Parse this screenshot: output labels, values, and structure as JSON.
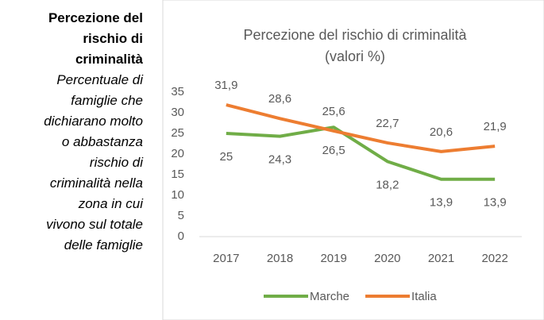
{
  "sidebar": {
    "title_lines": [
      "Percezione del",
      "rischio di",
      "criminalità"
    ],
    "description_lines": [
      "Percentuale di",
      "famiglie che",
      "dichiarano molto",
      "o abbastanza",
      "rischio di",
      "criminalità nella",
      "zona in cui",
      "vivono sul totale",
      "delle famiglie"
    ]
  },
  "chart_data": {
    "type": "line",
    "title": "Percezione del rischio di criminalità",
    "subtitle": "(valori %)",
    "categories": [
      "2017",
      "2018",
      "2019",
      "2020",
      "2021",
      "2022"
    ],
    "series": [
      {
        "name": "Marche",
        "color": "#70ad47",
        "values": [
          25,
          24.3,
          26.5,
          18.2,
          13.9,
          13.9
        ],
        "value_labels": [
          "25",
          "24,3",
          "26,5",
          "18,2",
          "13,9",
          "13,9"
        ],
        "label_position": "below"
      },
      {
        "name": "Italia",
        "color": "#ed7d31",
        "values": [
          31.9,
          28.6,
          25.6,
          22.7,
          20.6,
          21.9
        ],
        "value_labels": [
          "31,9",
          "28,6",
          "25,6",
          "22,7",
          "20,6",
          "21,9"
        ],
        "label_position": "above"
      }
    ],
    "ylim": [
      0,
      35
    ],
    "yticks": [
      0,
      5,
      10,
      15,
      20,
      25,
      30,
      35
    ],
    "grid": false,
    "legend": "bottom"
  }
}
